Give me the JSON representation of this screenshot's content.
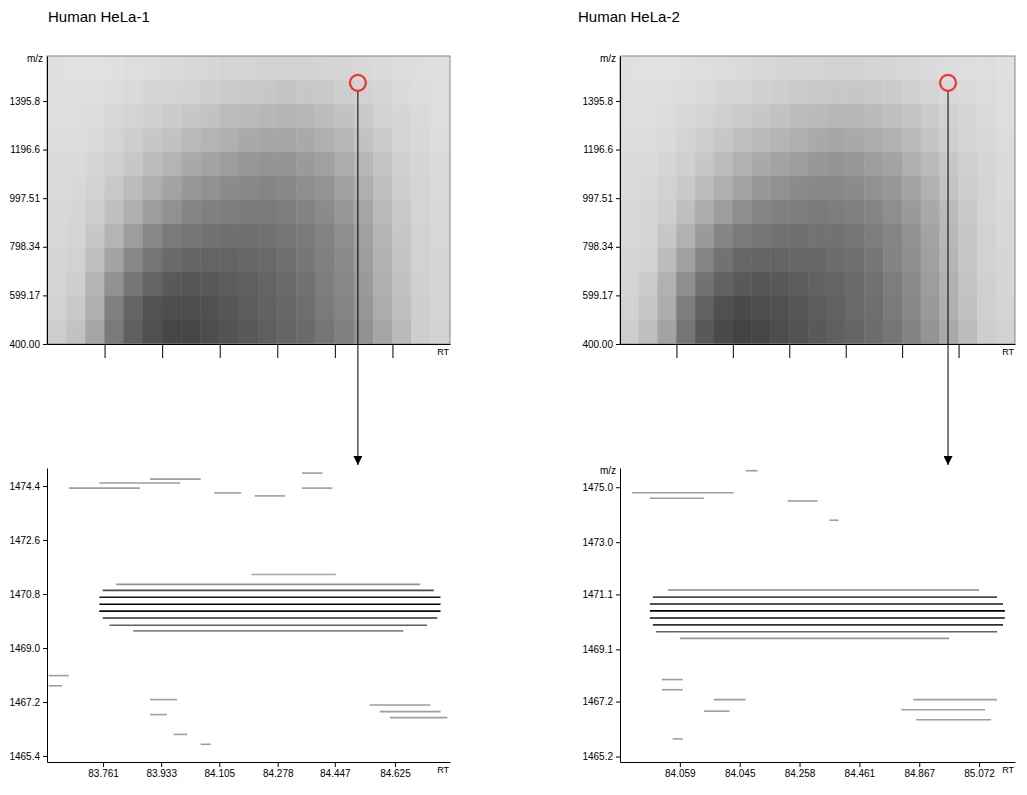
{
  "chart_data": [
    {
      "type": "heatmap",
      "title": "Human HeLa-1",
      "ylabel": "m/z",
      "xlabel": "RT",
      "xlim": [
        0,
        105
      ],
      "ylim": [
        400,
        1580
      ],
      "xticks": [
        15,
        30,
        45,
        60,
        75,
        90
      ],
      "yticks": [
        {
          "value": 400,
          "label": "400.00"
        },
        599.17,
        798.34,
        997.51,
        1196.6,
        1395.8
      ],
      "tick_labels": "y",
      "cells": [
        [
          30,
          35,
          45,
          60,
          70,
          75,
          78,
          78,
          76,
          74,
          72,
          70,
          68,
          66,
          62,
          58,
          52,
          45,
          38,
          30,
          28
        ],
        [
          28,
          32,
          42,
          58,
          68,
          74,
          76,
          76,
          75,
          73,
          71,
          69,
          67,
          64,
          60,
          56,
          50,
          43,
          36,
          30,
          27
        ],
        [
          27,
          30,
          40,
          52,
          62,
          68,
          72,
          73,
          72,
          71,
          70,
          68,
          66,
          63,
          59,
          55,
          49,
          42,
          35,
          29,
          26
        ],
        [
          26,
          28,
          36,
          46,
          55,
          62,
          66,
          68,
          68,
          68,
          67,
          66,
          64,
          61,
          58,
          54,
          48,
          41,
          34,
          28,
          26
        ],
        [
          25,
          27,
          33,
          40,
          48,
          55,
          60,
          62,
          63,
          64,
          64,
          63,
          62,
          60,
          57,
          53,
          47,
          40,
          33,
          28,
          25
        ],
        [
          25,
          26,
          30,
          36,
          42,
          48,
          52,
          56,
          58,
          59,
          60,
          60,
          59,
          57,
          54,
          50,
          45,
          38,
          32,
          27,
          25
        ],
        [
          24,
          25,
          28,
          32,
          37,
          42,
          46,
          50,
          52,
          54,
          55,
          56,
          55,
          53,
          51,
          47,
          42,
          36,
          30,
          27,
          24
        ],
        [
          24,
          24,
          26,
          29,
          33,
          37,
          40,
          44,
          46,
          48,
          50,
          51,
          51,
          49,
          47,
          43,
          39,
          34,
          29,
          26,
          24
        ],
        [
          23,
          23,
          24,
          27,
          30,
          33,
          35,
          38,
          40,
          42,
          44,
          45,
          45,
          44,
          42,
          39,
          35,
          31,
          27,
          25,
          23
        ],
        [
          22,
          22,
          23,
          25,
          27,
          29,
          31,
          33,
          35,
          37,
          38,
          39,
          40,
          39,
          37,
          35,
          32,
          28,
          26,
          24,
          22
        ],
        [
          22,
          21,
          22,
          23,
          24,
          26,
          27,
          28,
          30,
          31,
          32,
          33,
          34,
          33,
          32,
          30,
          28,
          26,
          24,
          23,
          22
        ],
        [
          21,
          20,
          20,
          21,
          22,
          23,
          24,
          25,
          26,
          27,
          27,
          28,
          28,
          28,
          27,
          26,
          25,
          24,
          23,
          22,
          21
        ]
      ],
      "highlight": {
        "x": 81.0,
        "y": 1470,
        "color": "#e8372c"
      }
    },
    {
      "type": "heatmap",
      "title": "Human HeLa-2",
      "ylabel": "m/z",
      "xlabel": "RT",
      "xlim": [
        0,
        105
      ],
      "ylim": [
        400,
        1580
      ],
      "xticks": [
        15,
        30,
        45,
        60,
        75,
        90
      ],
      "yticks": [
        {
          "value": 400,
          "label": "400.00"
        },
        599.17,
        798.34,
        997.51,
        1196.6,
        1395.8
      ],
      "tick_labels": "y",
      "cells": [
        [
          30,
          36,
          46,
          62,
          72,
          77,
          79,
          78,
          76,
          74,
          72,
          70,
          68,
          65,
          62,
          57,
          51,
          44,
          37,
          30,
          28
        ],
        [
          28,
          33,
          43,
          59,
          69,
          75,
          77,
          76,
          75,
          73,
          71,
          69,
          66,
          64,
          60,
          55,
          49,
          42,
          35,
          29,
          27
        ],
        [
          27,
          31,
          41,
          53,
          63,
          69,
          72,
          73,
          72,
          71,
          69,
          68,
          66,
          63,
          59,
          54,
          48,
          41,
          34,
          29,
          26
        ],
        [
          26,
          28,
          37,
          47,
          56,
          63,
          67,
          68,
          68,
          67,
          67,
          65,
          64,
          61,
          57,
          53,
          47,
          40,
          33,
          28,
          26
        ],
        [
          25,
          27,
          33,
          41,
          49,
          56,
          60,
          62,
          63,
          64,
          63,
          63,
          62,
          59,
          56,
          52,
          46,
          39,
          33,
          28,
          25
        ],
        [
          25,
          26,
          30,
          36,
          43,
          48,
          53,
          56,
          58,
          59,
          60,
          59,
          58,
          56,
          53,
          49,
          44,
          38,
          32,
          27,
          25
        ],
        [
          24,
          25,
          28,
          32,
          37,
          42,
          46,
          50,
          52,
          54,
          55,
          55,
          54,
          52,
          50,
          46,
          41,
          35,
          30,
          27,
          24
        ],
        [
          24,
          24,
          26,
          29,
          33,
          37,
          41,
          44,
          46,
          48,
          50,
          51,
          50,
          48,
          46,
          42,
          38,
          33,
          29,
          26,
          24
        ],
        [
          23,
          23,
          24,
          27,
          30,
          33,
          36,
          38,
          40,
          42,
          44,
          45,
          44,
          43,
          41,
          38,
          34,
          30,
          27,
          25,
          23
        ],
        [
          22,
          22,
          23,
          25,
          27,
          29,
          31,
          33,
          35,
          37,
          38,
          39,
          39,
          38,
          36,
          34,
          31,
          28,
          26,
          24,
          22
        ],
        [
          22,
          21,
          22,
          23,
          24,
          26,
          27,
          29,
          30,
          31,
          32,
          33,
          33,
          32,
          31,
          29,
          27,
          25,
          24,
          23,
          22
        ],
        [
          21,
          20,
          20,
          21,
          22,
          23,
          24,
          25,
          26,
          27,
          27,
          28,
          28,
          27,
          26,
          25,
          24,
          23,
          22,
          22,
          21
        ]
      ],
      "highlight": {
        "x": 87.2,
        "y": 1470,
        "color": "#e8372c"
      }
    },
    {
      "type": "segments",
      "xlabel": "RT",
      "xlim": [
        83.595,
        84.788
      ],
      "ylim": [
        1465.2,
        1475.0
      ],
      "xticks": [
        83.761,
        83.933,
        84.105,
        84.278,
        84.447,
        84.625
      ],
      "yticks": [
        1465.4,
        1467.2,
        {
          "value": 1469,
          "label": "1469.0"
        },
        1470.8,
        1472.6,
        1474.4
      ],
      "segments": [
        {
          "mz": 1471.12,
          "rt_start": 83.8,
          "rt_end": 84.7,
          "intensity": 35
        },
        {
          "mz": 1470.92,
          "rt_start": 83.76,
          "rt_end": 84.74,
          "intensity": 70
        },
        {
          "mz": 1470.69,
          "rt_start": 83.75,
          "rt_end": 84.76,
          "intensity": 90
        },
        {
          "mz": 1470.46,
          "rt_start": 83.75,
          "rt_end": 84.76,
          "intensity": 100
        },
        {
          "mz": 1470.23,
          "rt_start": 83.75,
          "rt_end": 84.76,
          "intensity": 95
        },
        {
          "mz": 1470.0,
          "rt_start": 83.76,
          "rt_end": 84.75,
          "intensity": 80
        },
        {
          "mz": 1469.76,
          "rt_start": 83.78,
          "rt_end": 84.72,
          "intensity": 60
        },
        {
          "mz": 1469.57,
          "rt_start": 83.85,
          "rt_end": 84.65,
          "intensity": 40
        },
        {
          "mz": 1471.45,
          "rt_start": 84.2,
          "rt_end": 84.45,
          "intensity": 25
        },
        {
          "mz": 1474.5,
          "rt_start": 83.75,
          "rt_end": 83.99,
          "intensity": 30
        },
        {
          "mz": 1474.33,
          "rt_start": 83.66,
          "rt_end": 83.87,
          "intensity": 30
        },
        {
          "mz": 1474.63,
          "rt_start": 83.9,
          "rt_end": 84.05,
          "intensity": 30
        },
        {
          "mz": 1474.17,
          "rt_start": 84.09,
          "rt_end": 84.17,
          "intensity": 30
        },
        {
          "mz": 1474.33,
          "rt_start": 84.35,
          "rt_end": 84.44,
          "intensity": 30
        },
        {
          "mz": 1474.07,
          "rt_start": 84.21,
          "rt_end": 84.3,
          "intensity": 30
        },
        {
          "mz": 1474.83,
          "rt_start": 84.35,
          "rt_end": 84.41,
          "intensity": 30
        },
        {
          "mz": 1468.08,
          "rt_start": 83.6,
          "rt_end": 83.66,
          "intensity": 30
        },
        {
          "mz": 1467.74,
          "rt_start": 83.6,
          "rt_end": 83.64,
          "intensity": 30
        },
        {
          "mz": 1467.1,
          "rt_start": 84.55,
          "rt_end": 84.73,
          "intensity": 30
        },
        {
          "mz": 1466.88,
          "rt_start": 84.58,
          "rt_end": 84.76,
          "intensity": 30
        },
        {
          "mz": 1466.68,
          "rt_start": 84.61,
          "rt_end": 84.78,
          "intensity": 30
        },
        {
          "mz": 1467.28,
          "rt_start": 83.9,
          "rt_end": 83.98,
          "intensity": 30
        },
        {
          "mz": 1466.78,
          "rt_start": 83.9,
          "rt_end": 83.95,
          "intensity": 30
        },
        {
          "mz": 1466.12,
          "rt_start": 83.97,
          "rt_end": 84.01,
          "intensity": 30
        },
        {
          "mz": 1465.79,
          "rt_start": 84.05,
          "rt_end": 84.08,
          "intensity": 30
        }
      ]
    },
    {
      "type": "segments",
      "ylabel": "m/z",
      "xlabel": "RT",
      "categories": [
        "84.059",
        "84.045",
        "84.258",
        "84.461",
        "84.867",
        "85.072"
      ],
      "xlim": [
        -1,
        5.6
      ],
      "ylim": [
        1465.0,
        1475.7
      ],
      "yticks": [
        {
          "value": 1475,
          "label": "1475.0"
        },
        {
          "value": 1473,
          "label": "1473.0"
        },
        1471.1,
        1469.1,
        1467.2,
        1465.2
      ],
      "segments": [
        {
          "mz": 1471.26,
          "rt_start": -0.2,
          "rt_end": 5.0,
          "intensity": 40
        },
        {
          "mz": 1471.0,
          "rt_start": -0.45,
          "rt_end": 5.3,
          "intensity": 70
        },
        {
          "mz": 1470.75,
          "rt_start": -0.5,
          "rt_end": 5.4,
          "intensity": 90
        },
        {
          "mz": 1470.5,
          "rt_start": -0.5,
          "rt_end": 5.43,
          "intensity": 100
        },
        {
          "mz": 1470.24,
          "rt_start": -0.5,
          "rt_end": 5.43,
          "intensity": 95
        },
        {
          "mz": 1469.99,
          "rt_start": -0.45,
          "rt_end": 5.4,
          "intensity": 80
        },
        {
          "mz": 1469.74,
          "rt_start": -0.4,
          "rt_end": 5.3,
          "intensity": 60
        },
        {
          "mz": 1469.5,
          "rt_start": 0.0,
          "rt_end": 4.5,
          "intensity": 35
        },
        {
          "mz": 1474.8,
          "rt_start": -0.8,
          "rt_end": 0.9,
          "intensity": 30
        },
        {
          "mz": 1474.6,
          "rt_start": -0.5,
          "rt_end": 0.4,
          "intensity": 30
        },
        {
          "mz": 1475.6,
          "rt_start": 1.1,
          "rt_end": 1.3,
          "intensity": 30
        },
        {
          "mz": 1474.5,
          "rt_start": 1.8,
          "rt_end": 2.3,
          "intensity": 30
        },
        {
          "mz": 1473.8,
          "rt_start": 2.5,
          "rt_end": 2.65,
          "intensity": 30
        },
        {
          "mz": 1467.27,
          "rt_start": 3.9,
          "rt_end": 5.3,
          "intensity": 30
        },
        {
          "mz": 1466.9,
          "rt_start": 3.7,
          "rt_end": 5.1,
          "intensity": 30
        },
        {
          "mz": 1466.54,
          "rt_start": 3.95,
          "rt_end": 5.2,
          "intensity": 30
        },
        {
          "mz": 1468.0,
          "rt_start": -0.3,
          "rt_end": 0.05,
          "intensity": 30
        },
        {
          "mz": 1467.63,
          "rt_start": -0.3,
          "rt_end": 0.05,
          "intensity": 30
        },
        {
          "mz": 1467.27,
          "rt_start": 0.57,
          "rt_end": 1.1,
          "intensity": 30
        },
        {
          "mz": 1466.85,
          "rt_start": 0.4,
          "rt_end": 0.83,
          "intensity": 30
        },
        {
          "mz": 1465.84,
          "rt_start": -0.12,
          "rt_end": 0.05,
          "intensity": 30
        }
      ]
    }
  ]
}
